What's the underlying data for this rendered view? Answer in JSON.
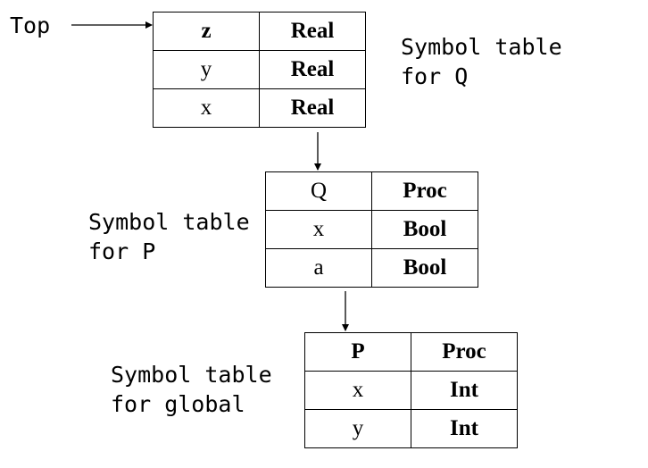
{
  "top_label": "Top",
  "tables": {
    "q": {
      "caption_lines": [
        "Symbol table",
        "for Q"
      ],
      "rows": [
        {
          "name": "z",
          "type": "Real"
        },
        {
          "name": "y",
          "type": "Real"
        },
        {
          "name": "x",
          "type": "Real"
        }
      ]
    },
    "p": {
      "caption_lines": [
        "Symbol table",
        "for P"
      ],
      "rows": [
        {
          "name": "Q",
          "type": "Proc"
        },
        {
          "name": "x",
          "type": "Bool"
        },
        {
          "name": "a",
          "type": "Bool"
        }
      ]
    },
    "global": {
      "caption_lines": [
        "Symbol table",
        "for global"
      ],
      "rows": [
        {
          "name": "P",
          "type": "Proc"
        },
        {
          "name": "x",
          "type": "Int"
        },
        {
          "name": "y",
          "type": "Int"
        }
      ]
    }
  }
}
